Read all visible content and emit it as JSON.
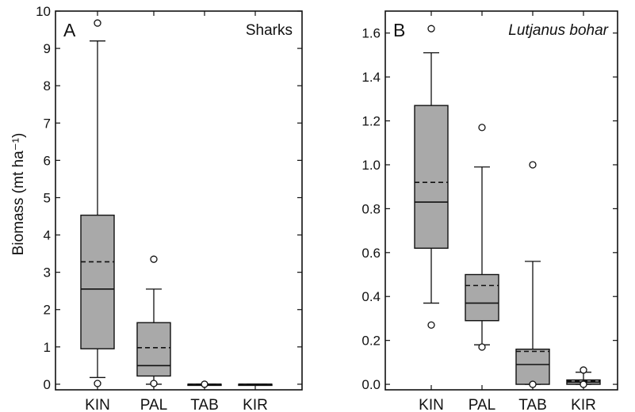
{
  "chart_data": [
    {
      "type": "box",
      "panel_letter": "A",
      "title": "Sharks",
      "title_italic": false,
      "ylabel": "Biomass (mt ha⁻¹)",
      "ylim": [
        -0.15,
        10
      ],
      "yticks": [
        0,
        1,
        2,
        3,
        4,
        5,
        6,
        7,
        8,
        9,
        10
      ],
      "tick_labels": [
        "0",
        "1",
        "2",
        "3",
        "4",
        "5",
        "6",
        "7",
        "8",
        "9",
        "10"
      ],
      "categories": [
        "KIN",
        "PAL",
        "TAB",
        "KIR"
      ],
      "boxes": [
        {
          "category": "KIN",
          "whisker_low": 0.18,
          "q1": 0.95,
          "median": 2.55,
          "mean": 3.28,
          "q3": 4.53,
          "whisker_high": 9.2,
          "outliers": [
            9.68,
            0.02
          ]
        },
        {
          "category": "PAL",
          "whisker_low": 0.0,
          "q1": 0.22,
          "median": 0.5,
          "mean": 0.98,
          "q3": 1.65,
          "whisker_high": 2.55,
          "outliers": [
            3.35,
            0.02
          ]
        },
        {
          "category": "TAB",
          "whisker_low": 0.0,
          "q1": 0.0,
          "median": 0.0,
          "mean": 0.0,
          "q3": 0.0,
          "whisker_high": 0.0,
          "outliers": [
            0.0
          ]
        },
        {
          "category": "KIR",
          "whisker_low": 0.0,
          "q1": 0.0,
          "median": 0.0,
          "mean": 0.0,
          "q3": 0.0,
          "whisker_high": 0.0,
          "outliers": []
        }
      ]
    },
    {
      "type": "box",
      "panel_letter": "B",
      "title": "Lutjanus bohar",
      "title_italic": true,
      "ylabel": "",
      "ylim": [
        -0.025,
        1.7
      ],
      "yticks": [
        0,
        0.2,
        0.4,
        0.6,
        0.8,
        1.0,
        1.2,
        1.4,
        1.6
      ],
      "tick_labels": [
        "0.0",
        "0.2",
        "0.4",
        "0.6",
        "0.8",
        "1.0",
        "1.2",
        "1.4",
        "1.6"
      ],
      "categories": [
        "KIN",
        "PAL",
        "TAB",
        "KIR"
      ],
      "boxes": [
        {
          "category": "KIN",
          "whisker_low": 0.37,
          "q1": 0.62,
          "median": 0.83,
          "mean": 0.92,
          "q3": 1.27,
          "whisker_high": 1.51,
          "outliers": [
            1.62,
            0.27
          ]
        },
        {
          "category": "PAL",
          "whisker_low": 0.18,
          "q1": 0.29,
          "median": 0.37,
          "mean": 0.45,
          "q3": 0.5,
          "whisker_high": 0.99,
          "outliers": [
            1.17,
            0.17
          ]
        },
        {
          "category": "TAB",
          "whisker_low": 0.0,
          "q1": 0.0,
          "median": 0.09,
          "mean": 0.15,
          "q3": 0.16,
          "whisker_high": 0.56,
          "outliers": [
            1.0,
            0.0
          ]
        },
        {
          "category": "KIR",
          "whisker_low": 0.0,
          "q1": 0.0,
          "median": 0.01,
          "mean": 0.015,
          "q3": 0.02,
          "whisker_high": 0.055,
          "outliers": [
            0.065,
            0.0
          ]
        }
      ]
    }
  ]
}
